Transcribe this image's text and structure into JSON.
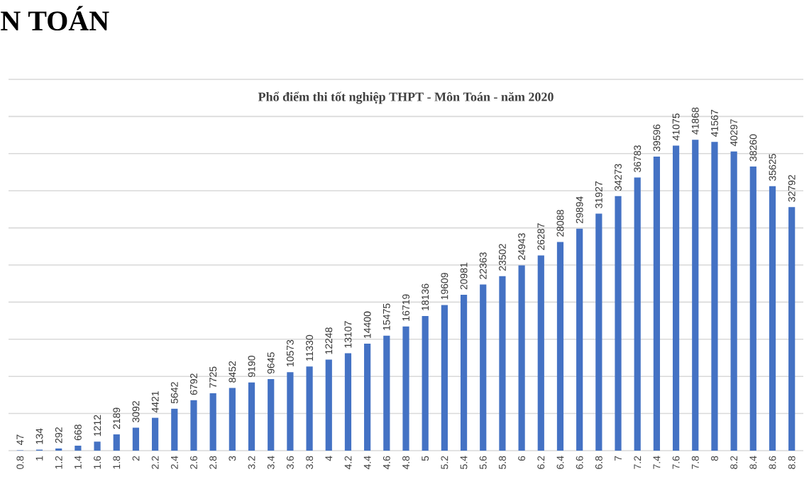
{
  "chart_data": {
    "type": "bar",
    "title": "Phổ điểm thi tốt nghiệp THPT - Môn Toán - năm 2020",
    "annotations": [
      "N TOÁN"
    ],
    "categories": [
      "0.8",
      "1",
      "1.2",
      "1.4",
      "1.6",
      "1.8",
      "2",
      "2.2",
      "2.4",
      "2.6",
      "2.8",
      "3",
      "3.2",
      "3.4",
      "3.6",
      "3.8",
      "4",
      "4.2",
      "4.4",
      "4.6",
      "4.8",
      "5",
      "5.2",
      "5.4",
      "5.6",
      "5.8",
      "6",
      "6.2",
      "6.4",
      "6.6",
      "6.8",
      "7",
      "7.2",
      "7.4",
      "7.6",
      "7.8",
      "8",
      "8.2",
      "8.4",
      "8.6",
      "8.8"
    ],
    "values": [
      47,
      134,
      292,
      668,
      1212,
      2189,
      3092,
      4421,
      5642,
      6792,
      7725,
      8452,
      9190,
      9645,
      10573,
      11330,
      12248,
      13107,
      14400,
      15475,
      16719,
      18136,
      19609,
      20981,
      22363,
      23502,
      24943,
      26287,
      28088,
      29894,
      31927,
      34273,
      36783,
      39596,
      41075,
      41868,
      41567,
      40297,
      38260,
      35625,
      32792
    ],
    "color": "#4472c4",
    "ylim": [
      0,
      50000
    ],
    "yticks": [
      {
        "value": 0,
        "label": null
      },
      {
        "value": 5000,
        "label": null
      },
      {
        "value": 10000,
        "label": null
      },
      {
        "value": 15000,
        "label": null
      },
      {
        "value": 20000,
        "label": null
      },
      {
        "value": 25000,
        "label": null
      },
      {
        "value": 30000,
        "label": null
      },
      {
        "value": 35000,
        "label": null
      },
      {
        "value": 40000,
        "label": null
      },
      {
        "value": 45000,
        "label": null
      },
      {
        "value": 50000,
        "label": null
      }
    ],
    "tick_labels": "x",
    "grid": "y",
    "data_labels": true
  }
}
